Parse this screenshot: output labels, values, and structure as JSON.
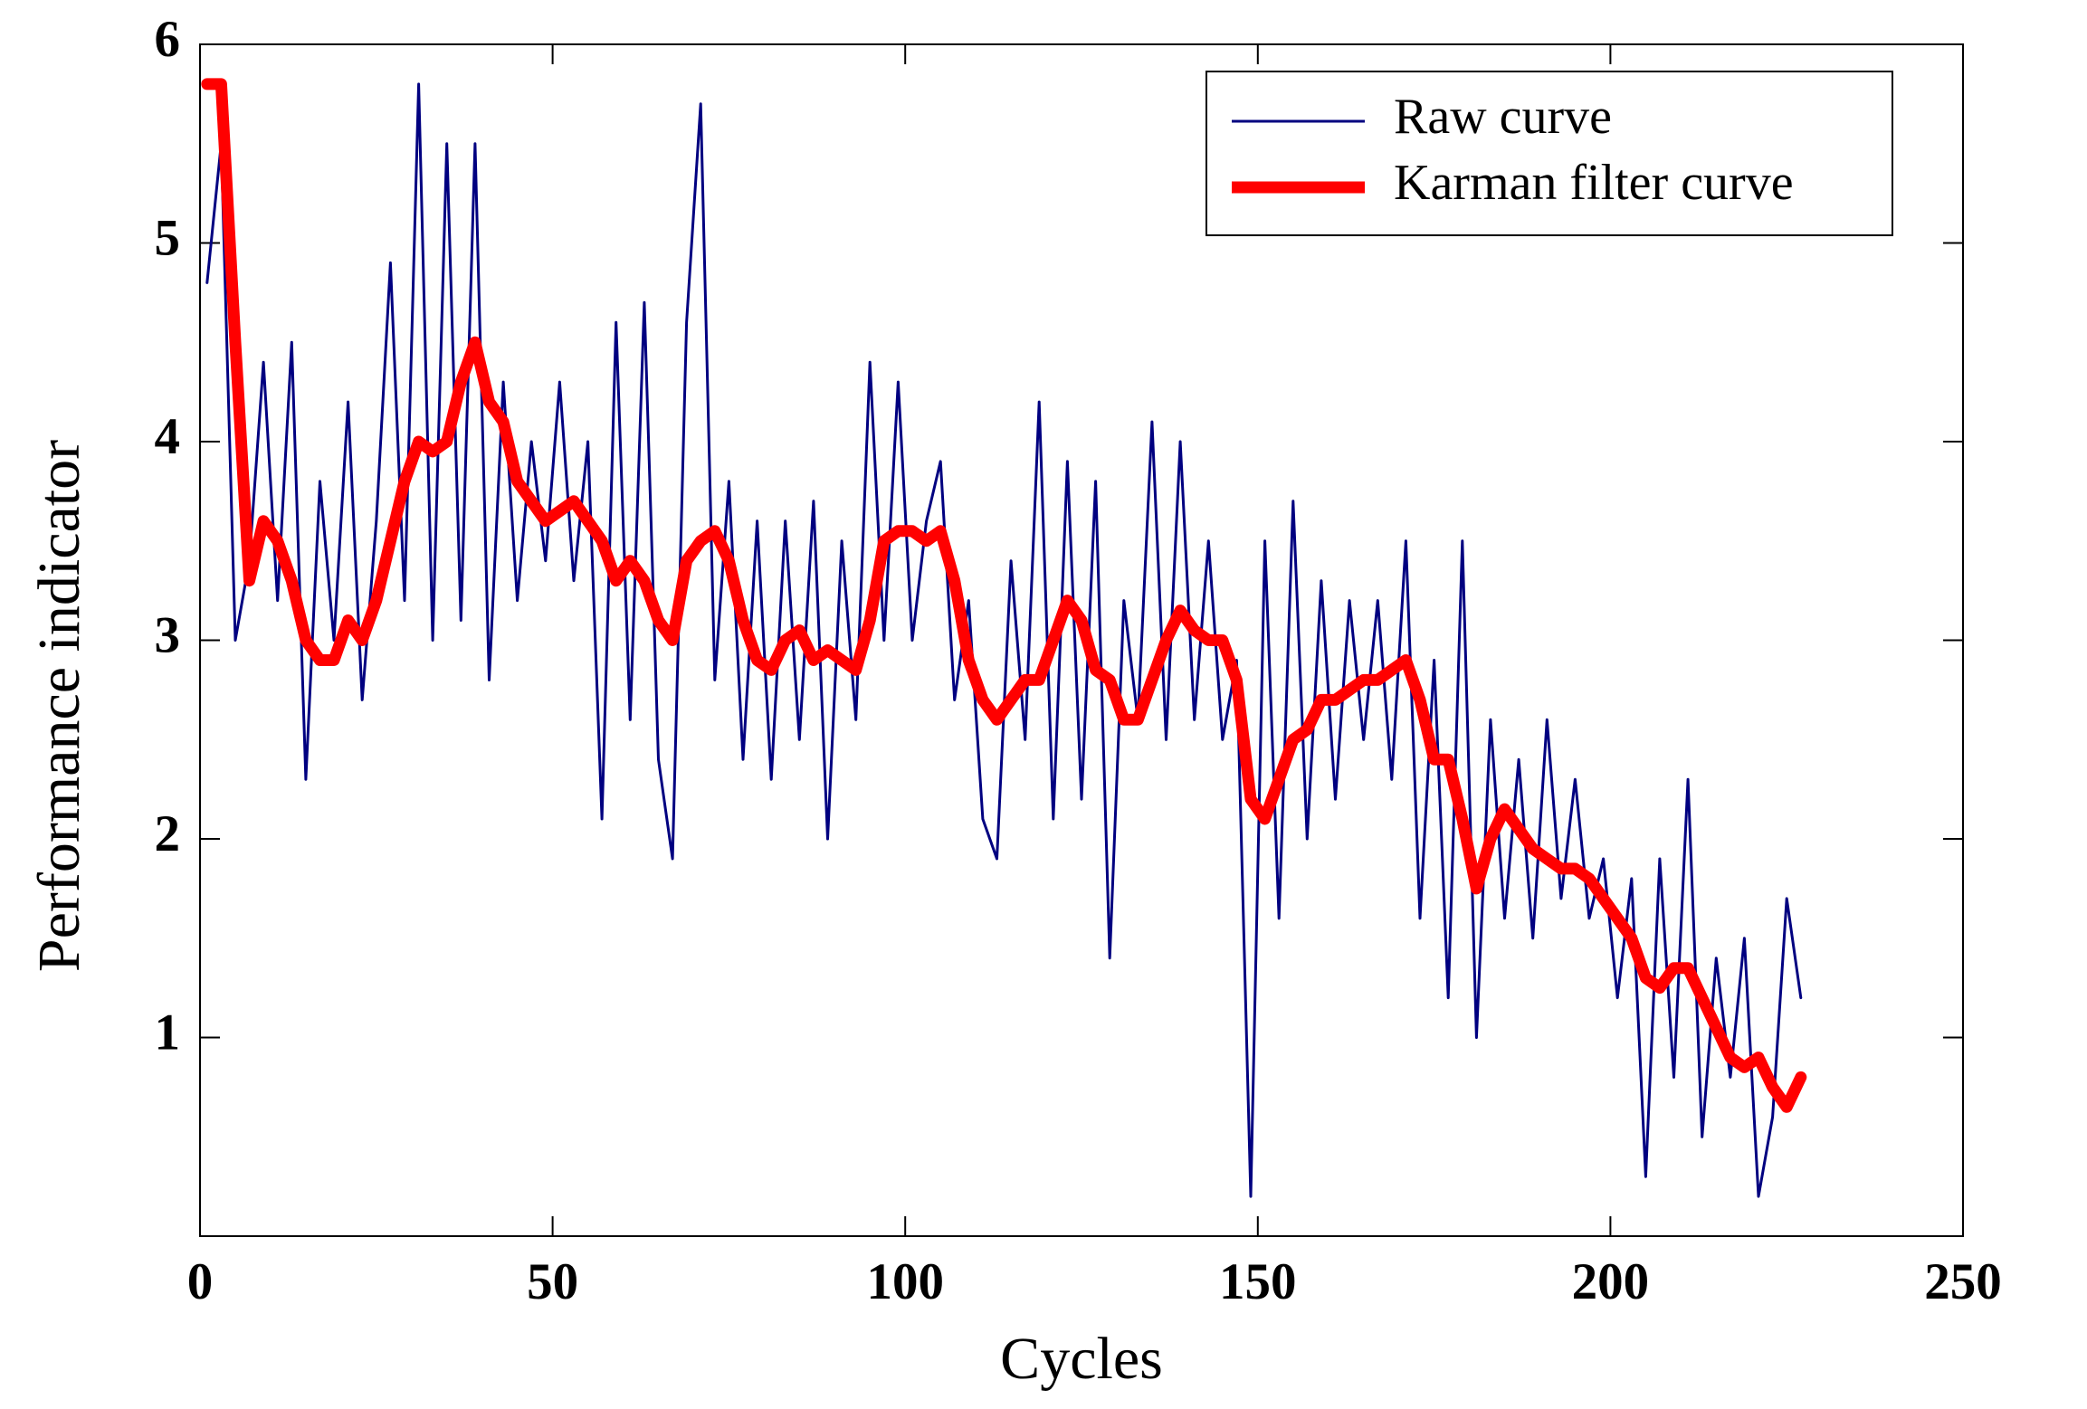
{
  "chart_data": {
    "type": "line",
    "xlabel": "Cycles",
    "ylabel": "Performance indicator",
    "xlim": [
      0,
      250
    ],
    "ylim": [
      0,
      6
    ],
    "xticks": [
      0,
      50,
      100,
      150,
      200,
      250
    ],
    "yticks": [
      1,
      2,
      3,
      4,
      5,
      6
    ],
    "legend": "upper right",
    "x": [
      1,
      3,
      5,
      7,
      9,
      11,
      13,
      15,
      17,
      19,
      21,
      23,
      25,
      27,
      29,
      31,
      33,
      35,
      37,
      39,
      41,
      43,
      45,
      47,
      49,
      51,
      53,
      55,
      57,
      59,
      61,
      63,
      65,
      67,
      69,
      71,
      73,
      75,
      77,
      79,
      81,
      83,
      85,
      87,
      89,
      91,
      93,
      95,
      97,
      99,
      101,
      103,
      105,
      107,
      109,
      111,
      113,
      115,
      117,
      119,
      121,
      123,
      125,
      127,
      129,
      131,
      133,
      135,
      137,
      139,
      141,
      143,
      145,
      147,
      149,
      151,
      153,
      155,
      157,
      159,
      161,
      163,
      165,
      167,
      169,
      171,
      173,
      175,
      177,
      179,
      181,
      183,
      185,
      187,
      189,
      191,
      193,
      195,
      197,
      199,
      201,
      203,
      205,
      207,
      209,
      211,
      213,
      215,
      217,
      219,
      221,
      223,
      225,
      227
    ],
    "series": [
      {
        "name": "Raw curve",
        "color": "#000080",
        "values": [
          4.8,
          5.5,
          3.0,
          3.4,
          4.4,
          3.2,
          4.5,
          2.3,
          3.8,
          3.0,
          4.2,
          2.7,
          3.6,
          4.9,
          3.2,
          5.8,
          3.0,
          5.5,
          3.1,
          5.5,
          2.8,
          4.3,
          3.2,
          4.0,
          3.4,
          4.3,
          3.3,
          4.0,
          2.1,
          4.6,
          2.6,
          4.7,
          2.4,
          1.9,
          4.6,
          5.7,
          2.8,
          3.8,
          2.4,
          3.6,
          2.3,
          3.6,
          2.5,
          3.7,
          2.0,
          3.5,
          2.6,
          4.4,
          3.0,
          4.3,
          3.0,
          3.6,
          3.9,
          2.7,
          3.2,
          2.1,
          1.9,
          3.4,
          2.5,
          4.2,
          2.1,
          3.9,
          2.2,
          3.8,
          1.4,
          3.2,
          2.6,
          4.1,
          2.5,
          4.0,
          2.6,
          3.5,
          2.5,
          2.9,
          0.2,
          3.5,
          1.6,
          3.7,
          2.0,
          3.3,
          2.2,
          3.2,
          2.5,
          3.2,
          2.3,
          3.5,
          1.6,
          2.9,
          1.2,
          3.5,
          1.0,
          2.6,
          1.6,
          2.4,
          1.5,
          2.6,
          1.7,
          2.3,
          1.6,
          1.9,
          1.2,
          1.8,
          0.3,
          1.9,
          0.8,
          2.3,
          0.5,
          1.4,
          0.8,
          1.5,
          0.2,
          0.6,
          1.7,
          1.2
        ]
      },
      {
        "name": "Karman filter curve",
        "color": "#ff0000",
        "values": [
          5.8,
          5.8,
          4.5,
          3.3,
          3.6,
          3.5,
          3.3,
          3.0,
          2.9,
          2.9,
          3.1,
          3.0,
          3.2,
          3.5,
          3.8,
          4.0,
          3.95,
          4.0,
          4.3,
          4.5,
          4.2,
          4.1,
          3.8,
          3.7,
          3.6,
          3.65,
          3.7,
          3.6,
          3.5,
          3.3,
          3.4,
          3.3,
          3.1,
          3.0,
          3.4,
          3.5,
          3.55,
          3.4,
          3.1,
          2.9,
          2.85,
          3.0,
          3.05,
          2.9,
          2.95,
          2.9,
          2.85,
          3.1,
          3.5,
          3.55,
          3.55,
          3.5,
          3.55,
          3.3,
          2.9,
          2.7,
          2.6,
          2.7,
          2.8,
          2.8,
          3.0,
          3.2,
          3.1,
          2.85,
          2.8,
          2.6,
          2.6,
          2.8,
          3.0,
          3.15,
          3.05,
          3.0,
          3.0,
          2.8,
          2.2,
          2.1,
          2.3,
          2.5,
          2.55,
          2.7,
          2.7,
          2.75,
          2.8,
          2.8,
          2.85,
          2.9,
          2.7,
          2.4,
          2.4,
          2.1,
          1.75,
          2.0,
          2.15,
          2.05,
          1.95,
          1.9,
          1.85,
          1.85,
          1.8,
          1.7,
          1.6,
          1.5,
          1.3,
          1.25,
          1.35,
          1.35,
          1.2,
          1.05,
          0.9,
          0.85,
          0.9,
          0.75,
          0.65,
          0.8
        ]
      }
    ]
  }
}
